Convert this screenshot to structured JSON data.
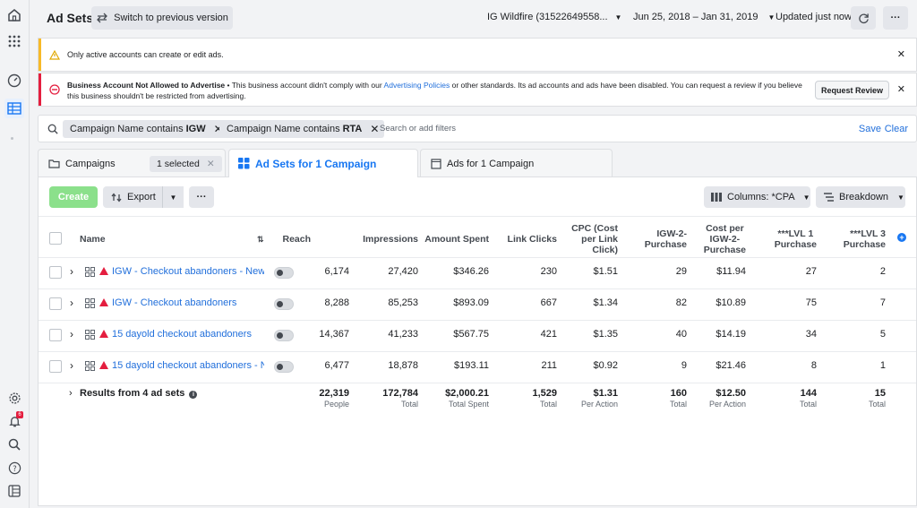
{
  "header": {
    "title": "Ad Sets",
    "switch_label": "Switch to previous version",
    "account": "IG Wildfire (31522649558...",
    "date_range": "Jun 25, 2018 – Jan 31, 2019",
    "updated": "Updated just now",
    "more": "···"
  },
  "banners": {
    "info_text": "Only active accounts can create or edit ads.",
    "error_title": "Business Account Not Allowed to Advertise",
    "error_sep": " • ",
    "error_text_1": "This business account didn't comply with our ",
    "error_link": "Advertising Policies",
    "error_text_2": " or other standards. Its ad accounts and ads have been disabled. You can request a review if you believe",
    "error_text_3": "this business shouldn't be restricted from advertising.",
    "review_label": "Request Review",
    "close": "✕"
  },
  "filters": {
    "chip1_prefix": "Campaign Name contains ",
    "chip1_value": "IGW",
    "chip2_prefix": "Campaign Name contains ",
    "chip2_value": "RTA",
    "placeholder": "Search or add filters",
    "save": "Save",
    "clear": "Clear"
  },
  "tabs": {
    "campaigns": "Campaigns",
    "selected": "1 selected",
    "adsets": "Ad Sets for 1 Campaign",
    "ads": "Ads for 1 Campaign"
  },
  "toolbar": {
    "create": "Create",
    "export": "Export",
    "more": "···",
    "columns": "Columns: *CPA",
    "breakdown": "Breakdown"
  },
  "table": {
    "headers": {
      "name": "Name",
      "reach": "Reach",
      "impressions": "Impressions",
      "amount": "Amount Spent",
      "clicks": "Link Clicks",
      "cpc_1": "CPC (Cost",
      "cpc_2": "per Link",
      "cpc_3": "Click)",
      "igw_1": "IGW-2-",
      "igw_2": "Purchase",
      "cost_1": "Cost per",
      "cost_2": "IGW-2-",
      "cost_3": "Purchase",
      "lvl1_1": "***LVL 1",
      "lvl1_2": "Purchase",
      "lvl3_1": "***LVL 3",
      "lvl3_2": "Purchase"
    },
    "rows": [
      {
        "name": "IGW - Checkout abandoners - New ...",
        "reach": "6,174",
        "impressions": "27,420",
        "amount": "$346.26",
        "clicks": "230",
        "cpc": "$1.51",
        "igw": "29",
        "cost": "$11.94",
        "lvl1": "27",
        "lvl3": "2"
      },
      {
        "name": "IGW - Checkout abandoners",
        "reach": "8,288",
        "impressions": "85,253",
        "amount": "$893.09",
        "clicks": "667",
        "cpc": "$1.34",
        "igw": "82",
        "cost": "$10.89",
        "lvl1": "75",
        "lvl3": "7"
      },
      {
        "name": "15 dayold checkout abandoners",
        "reach": "14,367",
        "impressions": "41,233",
        "amount": "$567.75",
        "clicks": "421",
        "cpc": "$1.35",
        "igw": "40",
        "cost": "$14.19",
        "lvl1": "34",
        "lvl3": "5"
      },
      {
        "name": "15 dayold checkout abandoners - N...",
        "reach": "6,477",
        "impressions": "18,878",
        "amount": "$193.11",
        "clicks": "211",
        "cpc": "$0.92",
        "igw": "9",
        "cost": "$21.46",
        "lvl1": "8",
        "lvl3": "1"
      }
    ],
    "totals": {
      "label": "Results from 4 ad sets",
      "reach": "22,319",
      "reach_sub": "People",
      "impressions": "172,784",
      "impressions_sub": "Total",
      "amount": "$2,000.21",
      "amount_sub": "Total Spent",
      "clicks": "1,529",
      "clicks_sub": "Total",
      "cpc": "$1.31",
      "cpc_sub": "Per Action",
      "igw": "160",
      "igw_sub": "Total",
      "cost": "$12.50",
      "cost_sub": "Per Action",
      "lvl1": "144",
      "lvl1_sub": "Total",
      "lvl3": "15",
      "lvl3_sub": "Total"
    }
  },
  "colors": {
    "accent": "#1877f2",
    "create": "#8be08b",
    "error": "#e41e3f",
    "warning": "#f7b928"
  },
  "rail": {
    "notif_count": "6"
  }
}
